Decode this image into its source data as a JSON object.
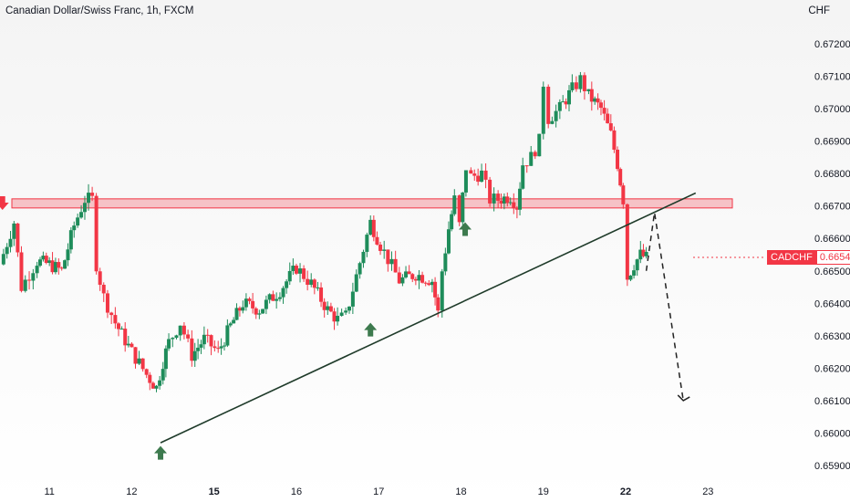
{
  "chart_title": "Canadian Dollar/Swiss Franc, 1h, FXCM",
  "currency_label": "CHF",
  "price_tag": {
    "symbol": "CADCHF",
    "value": "0.66544"
  },
  "colors": {
    "up": "#26a69a",
    "down": "#f23645",
    "up_fill": "#1e8c5a",
    "zone": "#f23645",
    "arrow_up": "#3d7a4e",
    "arrow_down": "#f23645",
    "trendline": "#1f3b2a"
  },
  "chart_data": {
    "type": "candlestick",
    "ylim": [
      0.6587,
      0.6726
    ],
    "y_ticks": [
      "0.67200",
      "0.67100",
      "0.67000",
      "0.66900",
      "0.66800",
      "0.66700",
      "0.66600",
      "0.66500",
      "0.66400",
      "0.66300",
      "0.66200",
      "0.66100",
      "0.66000",
      "0.65900"
    ],
    "x_ticks": [
      {
        "label": "11",
        "pos": 10.6,
        "bold": false
      },
      {
        "label": "12",
        "pos": 11.6,
        "bold": false
      },
      {
        "label": "15",
        "pos": 12.6,
        "bold": true
      },
      {
        "label": "16",
        "pos": 13.6,
        "bold": false
      },
      {
        "label": "17",
        "pos": 14.6,
        "bold": false
      },
      {
        "label": "18",
        "pos": 15.6,
        "bold": false
      },
      {
        "label": "19",
        "pos": 16.6,
        "bold": false
      },
      {
        "label": "22",
        "pos": 17.6,
        "bold": true
      },
      {
        "label": "23",
        "pos": 18.6,
        "bold": false
      }
    ],
    "x_range": [
      10.0,
      19.25
    ],
    "candle_path": [
      [
        10.0,
        0.6652
      ],
      [
        10.17,
        0.6665
      ],
      [
        10.26,
        0.6645
      ],
      [
        10.45,
        0.6653
      ],
      [
        10.6,
        0.6652
      ],
      [
        10.75,
        0.665
      ],
      [
        10.9,
        0.6664
      ],
      [
        11.03,
        0.6672
      ],
      [
        11.12,
        0.6672
      ],
      [
        11.17,
        0.6652
      ],
      [
        11.26,
        0.6642
      ],
      [
        11.4,
        0.6634
      ],
      [
        11.6,
        0.6625
      ],
      [
        11.78,
        0.6618
      ],
      [
        11.9,
        0.6614
      ],
      [
        11.98,
        0.6622
      ],
      [
        12.05,
        0.6628
      ],
      [
        12.19,
        0.6634
      ],
      [
        12.33,
        0.6624
      ],
      [
        12.48,
        0.6629
      ],
      [
        12.65,
        0.6625
      ],
      [
        12.8,
        0.6633
      ],
      [
        12.95,
        0.664
      ],
      [
        13.15,
        0.6638
      ],
      [
        13.4,
        0.6644
      ],
      [
        13.6,
        0.6651
      ],
      [
        13.78,
        0.6646
      ],
      [
        13.98,
        0.6638
      ],
      [
        14.1,
        0.6635
      ],
      [
        14.2,
        0.6636
      ],
      [
        14.5,
        0.6665
      ],
      [
        14.62,
        0.6658
      ],
      [
        14.85,
        0.6647
      ],
      [
        15.05,
        0.6649
      ],
      [
        15.25,
        0.6647
      ],
      [
        15.32,
        0.6637
      ],
      [
        15.37,
        0.665
      ],
      [
        15.45,
        0.6663
      ],
      [
        15.52,
        0.6672
      ],
      [
        15.58,
        0.6664
      ],
      [
        15.66,
        0.6682
      ],
      [
        15.72,
        0.6679
      ],
      [
        15.85,
        0.668
      ],
      [
        15.95,
        0.6672
      ],
      [
        16.05,
        0.6672
      ],
      [
        16.2,
        0.6673
      ],
      [
        16.28,
        0.667
      ],
      [
        16.35,
        0.6683
      ],
      [
        16.45,
        0.6685
      ],
      [
        16.55,
        0.669
      ],
      [
        16.6,
        0.6708
      ],
      [
        16.66,
        0.6697
      ],
      [
        16.8,
        0.67
      ],
      [
        16.95,
        0.6706
      ],
      [
        17.05,
        0.6709
      ],
      [
        17.15,
        0.6704
      ],
      [
        17.3,
        0.67
      ],
      [
        17.42,
        0.6692
      ],
      [
        17.5,
        0.6683
      ],
      [
        17.57,
        0.6672
      ],
      [
        17.62,
        0.6648
      ],
      [
        17.7,
        0.6652
      ],
      [
        17.78,
        0.6655
      ],
      [
        17.85,
        0.6654
      ]
    ],
    "annotations": {
      "resistance_zone": [
        0.66697,
        0.66708
      ],
      "resistance_x": [
        10.0,
        18.3
      ],
      "trendline": [
        [
          11.95,
          0.6597
        ],
        [
          18.45,
          0.6674
        ]
      ],
      "projection": [
        [
          17.85,
          0.665
        ],
        [
          17.95,
          0.6668
        ],
        [
          18.3,
          0.661
        ]
      ],
      "arrows_up": [
        [
          11.95,
          0.6596
        ],
        [
          14.5,
          0.6634
        ],
        [
          15.65,
          0.6665
        ]
      ],
      "arrows_down": [
        [
          10.03,
          0.6673
        ]
      ]
    }
  }
}
